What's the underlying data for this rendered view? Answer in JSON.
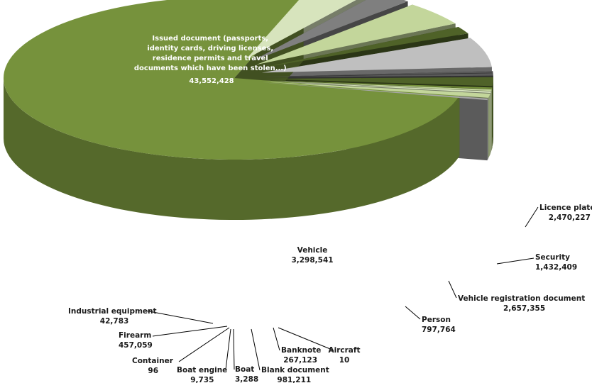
{
  "chart_data": {
    "type": "pie",
    "style": "3d exploded",
    "title": "",
    "legend": "none",
    "slices": [
      {
        "label": "Issued document (passports, identity cards, driving licenses, residence permits and travel documents which have been stolen...)",
        "value_text": "43,552,428",
        "value": 43552428,
        "color": "#76923c"
      },
      {
        "label": "Licence plate",
        "value_text": "2,470,227",
        "value": 2470227,
        "color": "#d7e4bd"
      },
      {
        "label": "Security",
        "value_text": "1,432,409",
        "value": 1432409,
        "color": "#7f7f7f"
      },
      {
        "label": "Vehicle registration document",
        "value_text": "2,657,355",
        "value": 2657355,
        "color": "#c3d69b"
      },
      {
        "label": "Person",
        "value_text": "797,764",
        "value": 797764,
        "color": "#4f6228"
      },
      {
        "label": "Vehicle",
        "value_text": "3,298,541",
        "value": 3298541,
        "color": "#bfbfbf"
      },
      {
        "label": "Aircraft",
        "value_text": "10",
        "value": 10,
        "color": "#595959"
      },
      {
        "label": "Banknote",
        "value_text": "267,123",
        "value": 267123,
        "color": "#595959"
      },
      {
        "label": "Blank document",
        "value_text": "981,211",
        "value": 981211,
        "color": "#4f6228"
      },
      {
        "label": "Boat",
        "value_text": "3,288",
        "value": 3288,
        "color": "#76923c"
      },
      {
        "label": "Boat engine",
        "value_text": "9,735",
        "value": 9735,
        "color": "#c3d69b"
      },
      {
        "label": "Container",
        "value_text": "96",
        "value": 96,
        "color": "#d7e4bd"
      },
      {
        "label": "Firearm",
        "value_text": "457,059",
        "value": 457059,
        "color": "#c3d69b"
      },
      {
        "label": "Industrial equipment",
        "value_text": "42,783",
        "value": 42783,
        "color": "#a6a6a6"
      }
    ]
  }
}
